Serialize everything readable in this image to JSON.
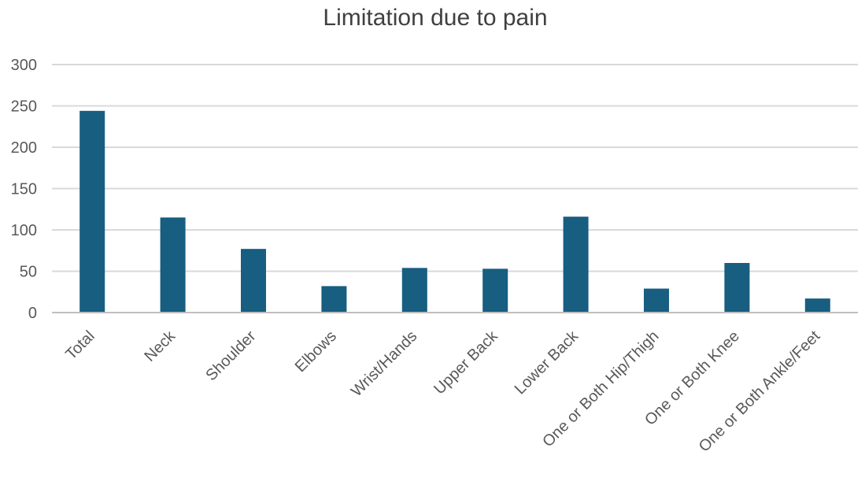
{
  "chart_data": {
    "type": "bar",
    "title": "Limitation due to pain",
    "xlabel": "",
    "ylabel": "",
    "categories": [
      "Total",
      "Neck",
      "Shoulder",
      "Elbows",
      "Wrist/Hands",
      "Upper Back",
      "Lower Back",
      "One or Both Hip/Thigh",
      "One or Both Knee",
      "One or Both Ankle/Feet"
    ],
    "values": [
      244,
      115,
      77,
      32,
      54,
      53,
      116,
      29,
      60,
      17
    ],
    "ylim": [
      0,
      300
    ],
    "yticks": [
      0,
      50,
      100,
      150,
      200,
      250,
      300
    ],
    "grid": true,
    "legend": "none",
    "bar_color": "#175e80"
  }
}
